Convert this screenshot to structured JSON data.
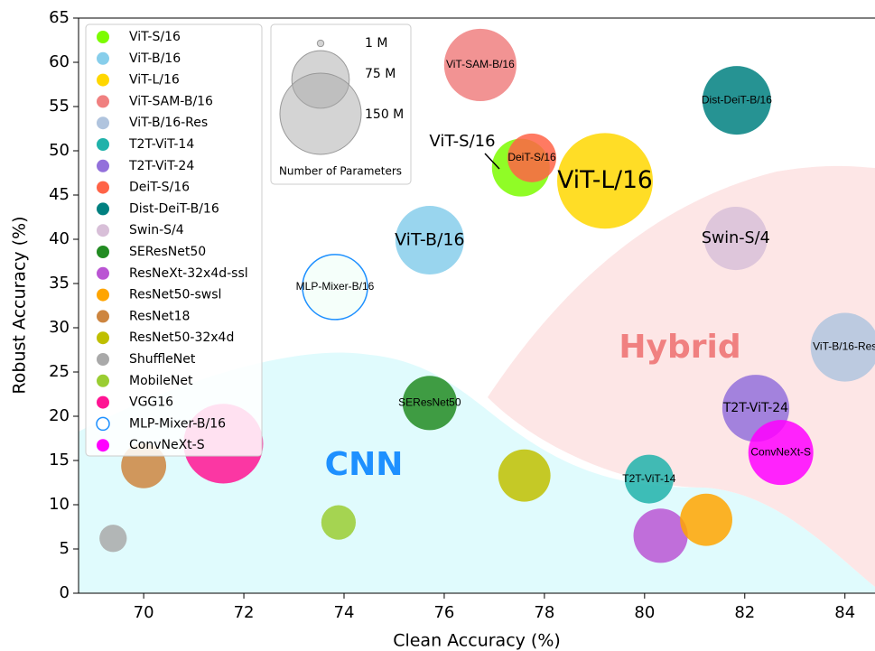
{
  "chart_data": {
    "type": "bubble",
    "xlabel": "Clean Accuracy (%)",
    "ylabel": "Robust Accuracy (%)",
    "xlim": [
      68.7,
      84.6
    ],
    "ylim": [
      0,
      65
    ],
    "xticks": [
      70,
      72,
      74,
      76,
      78,
      80,
      82,
      84
    ],
    "yticks": [
      0,
      5,
      10,
      15,
      20,
      25,
      30,
      35,
      40,
      45,
      50,
      55,
      60,
      65
    ],
    "regions": [
      {
        "label": "CNN",
        "color": "#e0fbfd",
        "text_color": "#1e90ff"
      },
      {
        "label": "Hybrid",
        "color": "#fde6e6",
        "text_color": "#f08080"
      }
    ],
    "annotations": [
      {
        "text": "ViT-S/16"
      }
    ],
    "legend": "upper left",
    "size_legend": {
      "title": "Number of Parameters",
      "items": [
        {
          "value": 1,
          "label": "1 M"
        },
        {
          "value": 75,
          "label": "75 M"
        },
        {
          "value": 150,
          "label": "150 M"
        }
      ]
    },
    "series": [
      {
        "name": "ViT-S/16",
        "color": "#7cfc00",
        "x": 77.53,
        "y": 48.1,
        "size": 76
      },
      {
        "name": "ViT-B/16",
        "color": "#87ceeb",
        "x": 75.71,
        "y": 39.9,
        "size": 107,
        "label": "large"
      },
      {
        "name": "ViT-L/16",
        "color": "#ffd700",
        "x": 79.21,
        "y": 46.6,
        "size": 208,
        "label": "large"
      },
      {
        "name": "ViT-SAM-B/16",
        "color": "#f08080",
        "x": 76.72,
        "y": 59.7,
        "size": 119,
        "label": "small"
      },
      {
        "name": "ViT-B/16-Res",
        "color": "#b0c4de",
        "x": 84.0,
        "y": 27.8,
        "size": 107,
        "label": "small"
      },
      {
        "name": "T2T-ViT-14",
        "color": "#20b2aa",
        "x": 80.09,
        "y": 12.9,
        "size": 54,
        "label": "small"
      },
      {
        "name": "T2T-ViT-24",
        "color": "#9370db",
        "x": 82.22,
        "y": 20.9,
        "size": 102,
        "label": "medium"
      },
      {
        "name": "DeiT-S/16",
        "color": "#ff6347",
        "x": 77.75,
        "y": 49.2,
        "size": 54,
        "label": "small"
      },
      {
        "name": "Dist-DeiT-B/16",
        "color": "#008080",
        "x": 81.84,
        "y": 55.7,
        "size": 107,
        "label": "small"
      },
      {
        "name": "Swin-S/4",
        "color": "#d8bfd8",
        "x": 81.82,
        "y": 40.1,
        "size": 91,
        "label": "large"
      },
      {
        "name": "SEResNet50",
        "color": "#228b22",
        "x": 75.71,
        "y": 21.5,
        "size": 67,
        "label": "small"
      },
      {
        "name": "ResNeXt-32x4d-ssl",
        "color": "#ba55d3",
        "x": 80.32,
        "y": 6.5,
        "size": 67
      },
      {
        "name": "ResNet50-swsl",
        "color": "#ffa500",
        "x": 81.23,
        "y": 8.3,
        "size": 62
      },
      {
        "name": "ResNet18",
        "color": "#cd853f",
        "x": 70.0,
        "y": 14.4,
        "size": 46
      },
      {
        "name": "ResNet50-32x4d",
        "color": "#bfbf00",
        "x": 77.6,
        "y": 13.3,
        "size": 62
      },
      {
        "name": "ShuffleNet",
        "color": "#a9a9a9",
        "x": 69.39,
        "y": 6.2,
        "size": 17
      },
      {
        "name": "MobileNet",
        "color": "#9acd32",
        "x": 73.89,
        "y": 8.0,
        "size": 27
      },
      {
        "name": "VGG16",
        "color": "#ff1493",
        "x": 71.59,
        "y": 16.9,
        "size": 144
      },
      {
        "name": "MLP-Mixer-B/16",
        "color": "#1e90ff",
        "x": 73.82,
        "y": 34.6,
        "size": 96,
        "hollow": true,
        "label": "small"
      },
      {
        "name": "ConvNeXt-S",
        "color": "#ff00ff",
        "x": 82.72,
        "y": 15.9,
        "size": 96,
        "label": "small"
      }
    ]
  }
}
